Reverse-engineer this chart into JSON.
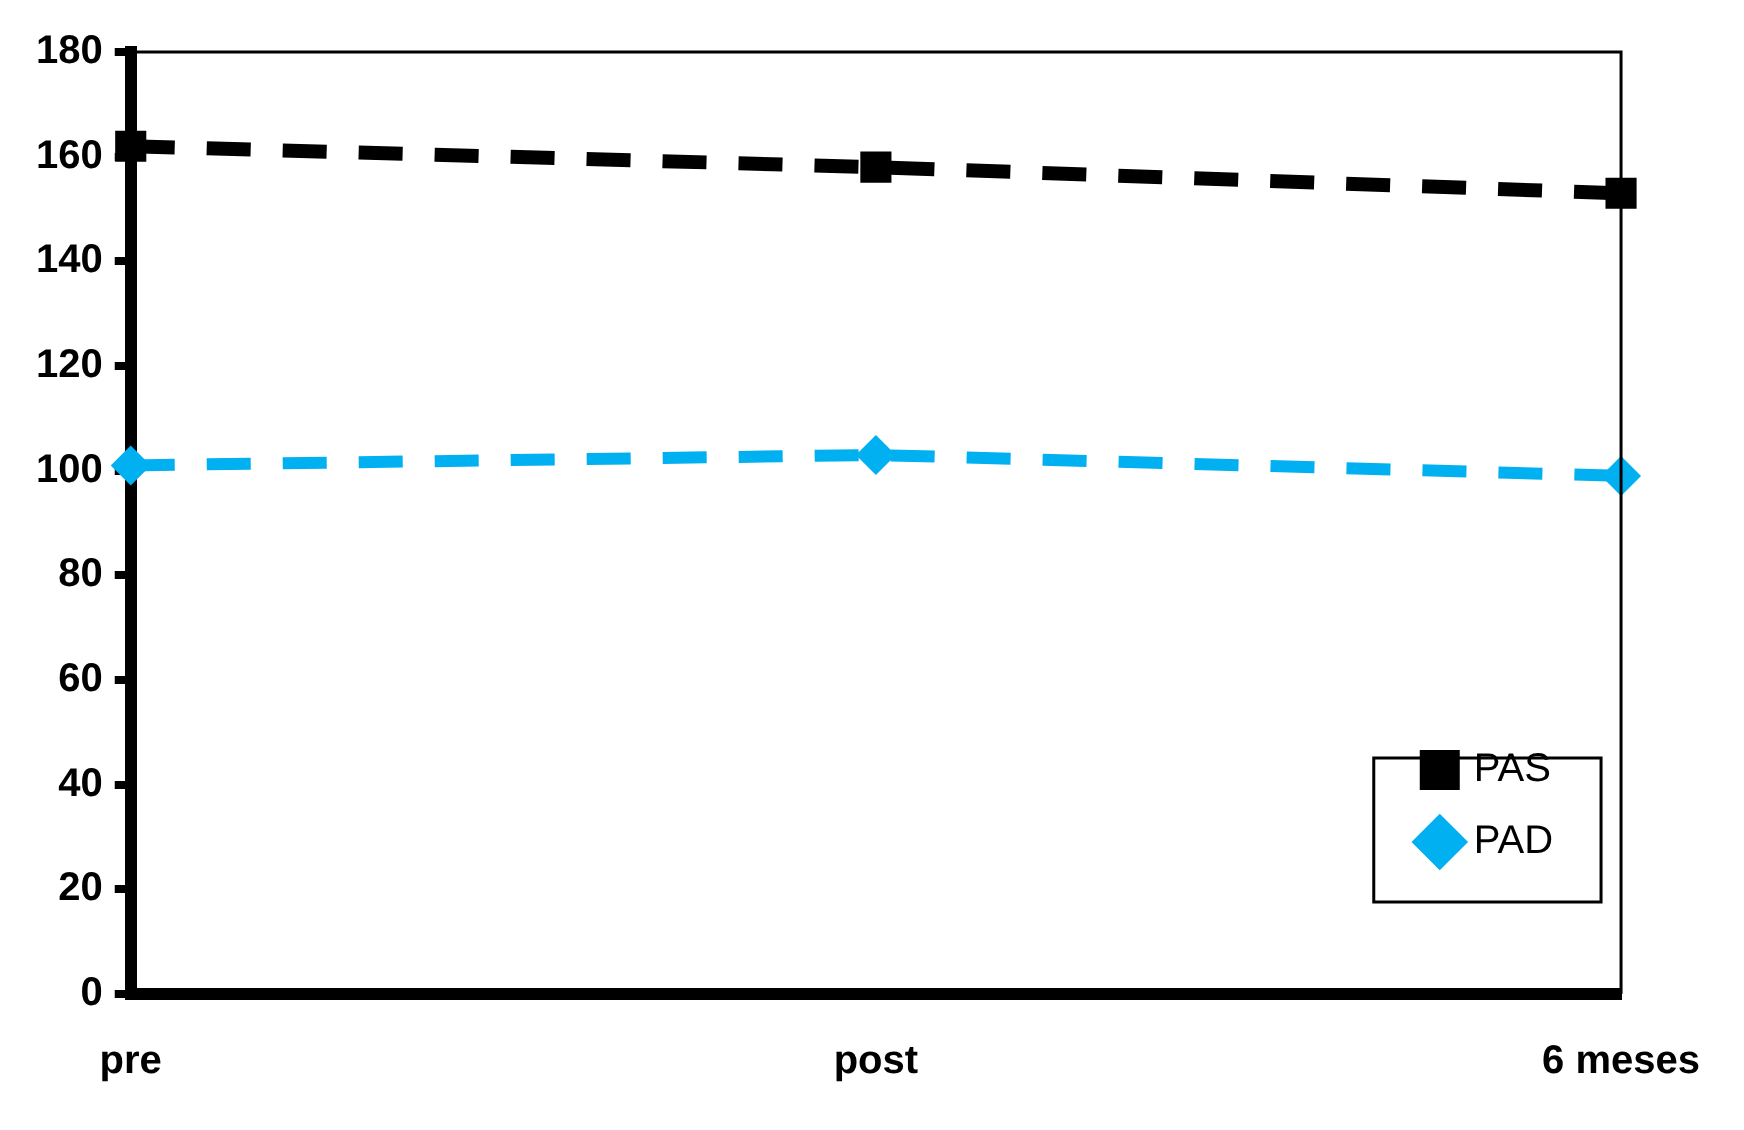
{
  "chart_data": {
    "type": "line",
    "categories": [
      "pre",
      "post",
      "6 meses"
    ],
    "series": [
      {
        "name": "PAS",
        "color": "#000000",
        "values": [
          162,
          158,
          153
        ],
        "marker": "square",
        "line_style": "dashed"
      },
      {
        "name": "PAD",
        "color": "#00b0f0",
        "values": [
          101,
          103,
          99
        ],
        "marker": "diamond",
        "line_style": "dashed"
      }
    ],
    "ylim": [
      0,
      180
    ],
    "yticks": [
      0,
      20,
      40,
      60,
      80,
      100,
      120,
      140,
      160,
      180
    ],
    "grid": false,
    "legend": "bottom right"
  }
}
